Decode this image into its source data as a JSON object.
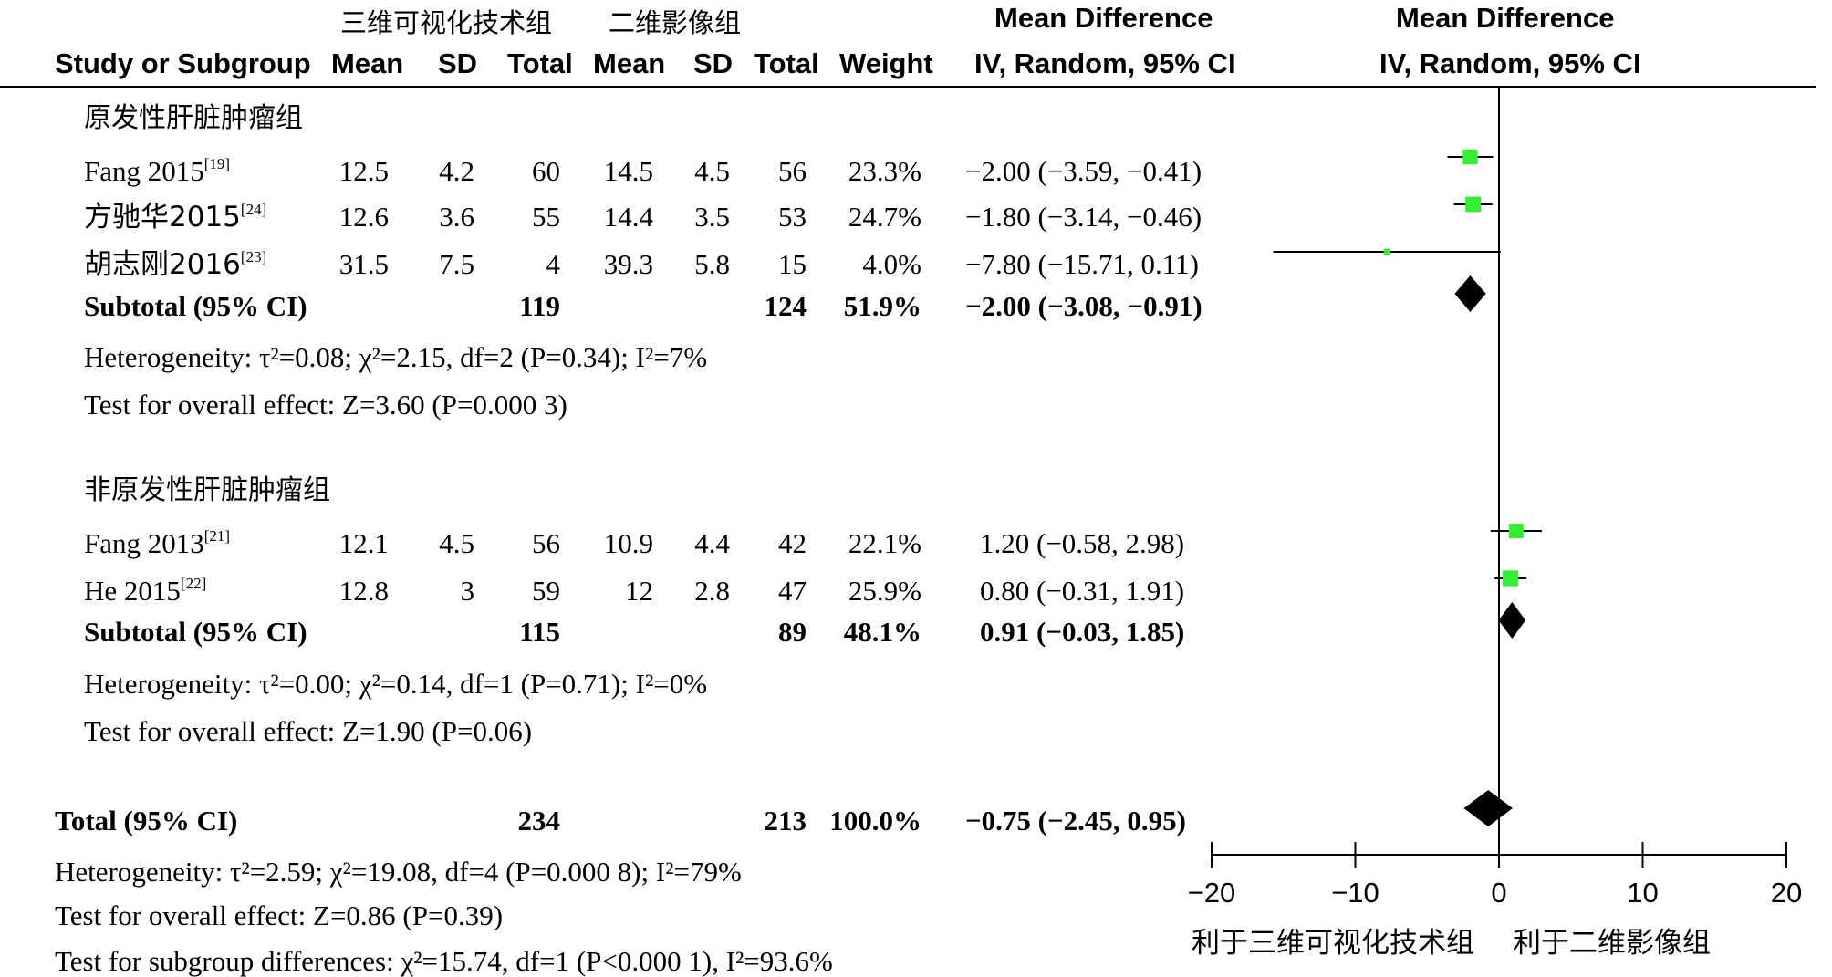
{
  "header": {
    "group1": "三维可视化技术组",
    "group2": "二维影像组",
    "md_title_left": "Mean Difference",
    "md_title_right": "Mean Difference",
    "study": "Study or Subgroup",
    "mean1": "Mean",
    "sd1": "SD",
    "total1": "Total",
    "mean2": "Mean",
    "sd2": "SD",
    "total2": "Total",
    "weight": "Weight",
    "ci_left": "IV, Random, 95% CI",
    "ci_right": "IV, Random, 95% CI"
  },
  "subgroups": [
    {
      "title": "原发性肝脏肿瘤组",
      "studies": [
        {
          "name": "Fang 2015",
          "ref": "[19]",
          "mean1": "12.5",
          "sd1": "4.2",
          "total1": "60",
          "mean2": "14.5",
          "sd2": "4.5",
          "total2": "56",
          "weight": "23.3%",
          "ci": "−2.00 (−3.59, −0.41)"
        },
        {
          "name": "方驰华2015",
          "ref": "[24]",
          "mean1": "12.6",
          "sd1": "3.6",
          "total1": "55",
          "mean2": "14.4",
          "sd2": "3.5",
          "total2": "53",
          "weight": "24.7%",
          "ci": "−1.80 (−3.14, −0.46)"
        },
        {
          "name": "胡志刚2016",
          "ref": "[23]",
          "mean1": "31.5",
          "sd1": "7.5",
          "total1": "4",
          "mean2": "39.3",
          "sd2": "5.8",
          "total2": "15",
          "weight": "4.0%",
          "ci": "−7.80 (−15.71, 0.11)"
        }
      ],
      "subtotal": {
        "label": "Subtotal (95% CI)",
        "total1": "119",
        "total2": "124",
        "weight": "51.9%",
        "ci": "−2.00 (−3.08, −0.91)"
      },
      "heterogeneity": "Heterogeneity: τ²=0.08; χ²=2.15, df=2 (P=0.34); I²=7%",
      "overall": "Test for overall effect: Z=3.60 (P=0.000 3)"
    },
    {
      "title": "非原发性肝脏肿瘤组",
      "studies": [
        {
          "name": "Fang 2013",
          "ref": "[21]",
          "mean1": "12.1",
          "sd1": "4.5",
          "total1": "56",
          "mean2": "10.9",
          "sd2": "4.4",
          "total2": "42",
          "weight": "22.1%",
          "ci": "1.20 (−0.58, 2.98)"
        },
        {
          "name": "He 2015",
          "ref": "[22]",
          "mean1": "12.8",
          "sd1": "3",
          "total1": "59",
          "mean2": "12",
          "sd2": "2.8",
          "total2": "47",
          "weight": "25.9%",
          "ci": "0.80 (−0.31, 1.91)"
        }
      ],
      "subtotal": {
        "label": "Subtotal (95% CI)",
        "total1": "115",
        "total2": "89",
        "weight": "48.1%",
        "ci": "0.91 (−0.03, 1.85)"
      },
      "heterogeneity": "Heterogeneity: τ²=0.00; χ²=0.14, df=1 (P=0.71); I²=0%",
      "overall": "Test for overall effect: Z=1.90 (P=0.06)"
    }
  ],
  "total": {
    "label": "Total (95% CI)",
    "total1": "234",
    "total2": "213",
    "weight": "100.0%",
    "ci": "−0.75 (−2.45, 0.95)",
    "heterogeneity": "Heterogeneity: τ²=2.59; χ²=19.08, df=4 (P=0.000 8); I²=79%",
    "overall": "Test for overall effect: Z=0.86 (P=0.39)",
    "subgroup_diff": "Test for subgroup differences: χ²=15.74, df=1 (P<0.000 1), I²=93.6%"
  },
  "axis": {
    "left_label": "利于三维可视化技术组",
    "right_label": "利于二维影像组"
  },
  "chart_data": {
    "type": "forest",
    "xlim": [
      -20,
      20
    ],
    "xticks": [
      -20,
      -10,
      0,
      10,
      20
    ],
    "xtick_labels": [
      "−20",
      "−10",
      "0",
      "10",
      "20"
    ],
    "null_line": 0,
    "studies": [
      {
        "label": "Fang 2015",
        "md": -2.0,
        "lo": -3.59,
        "hi": -0.41,
        "weight": 23.3
      },
      {
        "label": "方驰华2015",
        "md": -1.8,
        "lo": -3.14,
        "hi": -0.46,
        "weight": 24.7
      },
      {
        "label": "胡志刚2016",
        "md": -7.8,
        "lo": -15.71,
        "hi": 0.11,
        "weight": 4.0
      },
      {
        "label": "Fang 2013",
        "md": 1.2,
        "lo": -0.58,
        "hi": 2.98,
        "weight": 22.1
      },
      {
        "label": "He 2015",
        "md": 0.8,
        "lo": -0.31,
        "hi": 1.91,
        "weight": 25.9
      }
    ],
    "diamonds": [
      {
        "label": "Subtotal 原发性肝脏肿瘤组",
        "md": -2.0,
        "lo": -3.08,
        "hi": -0.91
      },
      {
        "label": "Subtotal 非原发性肝脏肿瘤组",
        "md": 0.91,
        "lo": -0.03,
        "hi": 1.85
      },
      {
        "label": "Total",
        "md": -0.75,
        "lo": -2.45,
        "hi": 0.95
      }
    ],
    "colors": {
      "study_marker": "#33ee33",
      "diamond": "#000000",
      "line": "#000000"
    }
  }
}
